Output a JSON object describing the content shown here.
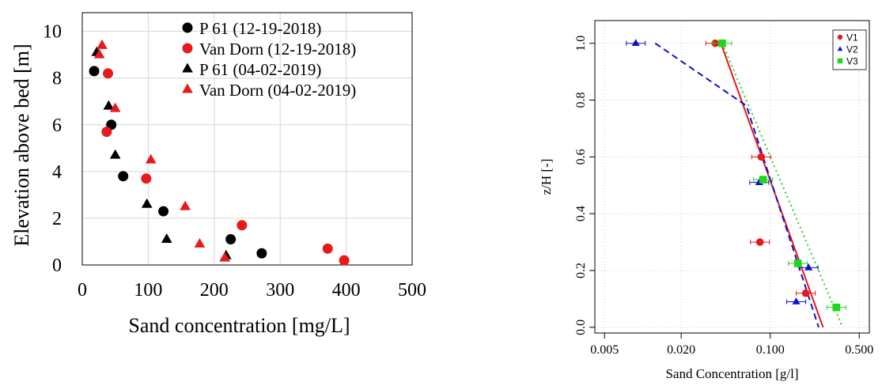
{
  "chart_data": [
    {
      "type": "scatter",
      "title": "",
      "xlabel": "Sand concentration [mg/L]",
      "ylabel": "Elevation above bed [m]",
      "xlim": [
        0,
        500
      ],
      "ylim": [
        0,
        10.8
      ],
      "xticks": [
        "0",
        "100",
        "200",
        "300",
        "400",
        "500"
      ],
      "yticks": [
        "0",
        "2",
        "4",
        "6",
        "8",
        "10"
      ],
      "grid": true,
      "legend": "top-right",
      "series": [
        {
          "name": "P 61 (12-19-2018)",
          "marker": "circle",
          "color": "#000000",
          "points": [
            [
              18,
              8.3
            ],
            [
              44,
              6.0
            ],
            [
              62,
              3.8
            ],
            [
              123,
              2.3
            ],
            [
              225,
              1.1
            ],
            [
              272,
              0.5
            ]
          ]
        },
        {
          "name": "Van Dorn (12-19-2018)",
          "marker": "circle",
          "color": "#e8191a",
          "points": [
            [
              39,
              8.2
            ],
            [
              37,
              5.7
            ],
            [
              97,
              3.7
            ],
            [
              242,
              1.7
            ],
            [
              372,
              0.7
            ],
            [
              397,
              0.2
            ]
          ]
        },
        {
          "name": "P 61 (04-02-2019)",
          "marker": "triangle",
          "color": "#000000",
          "points": [
            [
              22,
              9.1
            ],
            [
              40,
              6.8
            ],
            [
              50,
              4.7
            ],
            [
              98,
              2.6
            ],
            [
              128,
              1.1
            ],
            [
              218,
              0.4
            ]
          ]
        },
        {
          "name": "Van Dorn (04-02-2019)",
          "marker": "triangle",
          "color": "#e8191a",
          "points": [
            [
              30,
              9.4
            ],
            [
              26,
              9.0
            ],
            [
              50,
              6.7
            ],
            [
              104,
              4.5
            ],
            [
              156,
              2.5
            ],
            [
              178,
              0.9
            ],
            [
              216,
              0.3
            ]
          ]
        }
      ]
    },
    {
      "type": "scatter",
      "title": "",
      "xlabel": "Sand Concentration [g/l]",
      "ylabel": "z/H [-]",
      "xscale": "log",
      "xlim": [
        0.0042,
        0.6
      ],
      "ylim": [
        -0.02,
        1.08
      ],
      "xticks": [
        "0.005",
        "0.020",
        "0.100",
        "0.500"
      ],
      "yticks": [
        "0.0",
        "0.2",
        "0.4",
        "0.6",
        "0.8",
        "1.0"
      ],
      "grid": true,
      "legend": "top-right",
      "series": [
        {
          "name": "V1",
          "marker": "circle",
          "color": "#e8191a",
          "points": [
            [
              0.037,
              1.0
            ],
            [
              0.085,
              0.6
            ],
            [
              0.083,
              0.3
            ],
            [
              0.19,
              0.12
            ]
          ],
          "fit": [
            [
              0.041,
              1.0
            ],
            [
              0.26,
              0.0
            ]
          ],
          "fit_style": "solid"
        },
        {
          "name": "V2",
          "marker": "triangle",
          "color": "#1010cc",
          "points": [
            [
              0.0088,
              1.0
            ],
            [
              0.082,
              0.51
            ],
            [
              0.2,
              0.21
            ],
            [
              0.16,
              0.09
            ]
          ],
          "fit": [
            [
              0.0125,
              1.0
            ],
            [
              0.065,
              0.78
            ],
            [
              0.24,
              0.0
            ]
          ],
          "fit_style": "dashed"
        },
        {
          "name": "V3",
          "marker": "square",
          "color": "#1ed61e",
          "points": [
            [
              0.042,
              1.0
            ],
            [
              0.088,
              0.52
            ],
            [
              0.165,
              0.225
            ],
            [
              0.33,
              0.07
            ]
          ],
          "fit": [
            [
              0.042,
              1.0
            ],
            [
              0.37,
              0.0
            ]
          ],
          "fit_style": "dotted"
        }
      ]
    }
  ]
}
